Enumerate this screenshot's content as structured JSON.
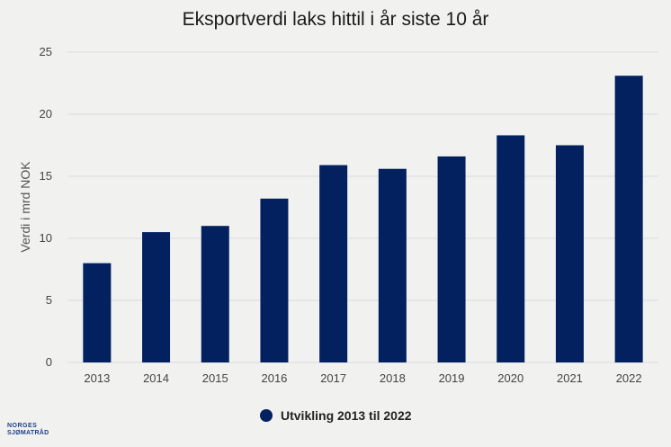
{
  "chart_data": {
    "type": "bar",
    "title": "Eksportverdi laks hittil i år siste 10 år",
    "ylabel": "Verdi i mrd NOK",
    "xlabel": "",
    "ylim": [
      0,
      25
    ],
    "yticks": [
      0,
      5,
      10,
      15,
      20,
      25
    ],
    "grid": true,
    "legend_position": "bottom-center",
    "categories": [
      "2013",
      "2014",
      "2015",
      "2016",
      "2017",
      "2018",
      "2019",
      "2020",
      "2021",
      "2022"
    ],
    "series": [
      {
        "name": "Utvikling 2013 til 2022",
        "color": "#03205f",
        "values": [
          8.0,
          10.5,
          11.0,
          13.2,
          15.9,
          15.6,
          16.6,
          18.3,
          17.5,
          23.1
        ]
      }
    ]
  },
  "branding": {
    "logo_line1": "NORGES",
    "logo_line2": "SJØMATRÅD"
  }
}
